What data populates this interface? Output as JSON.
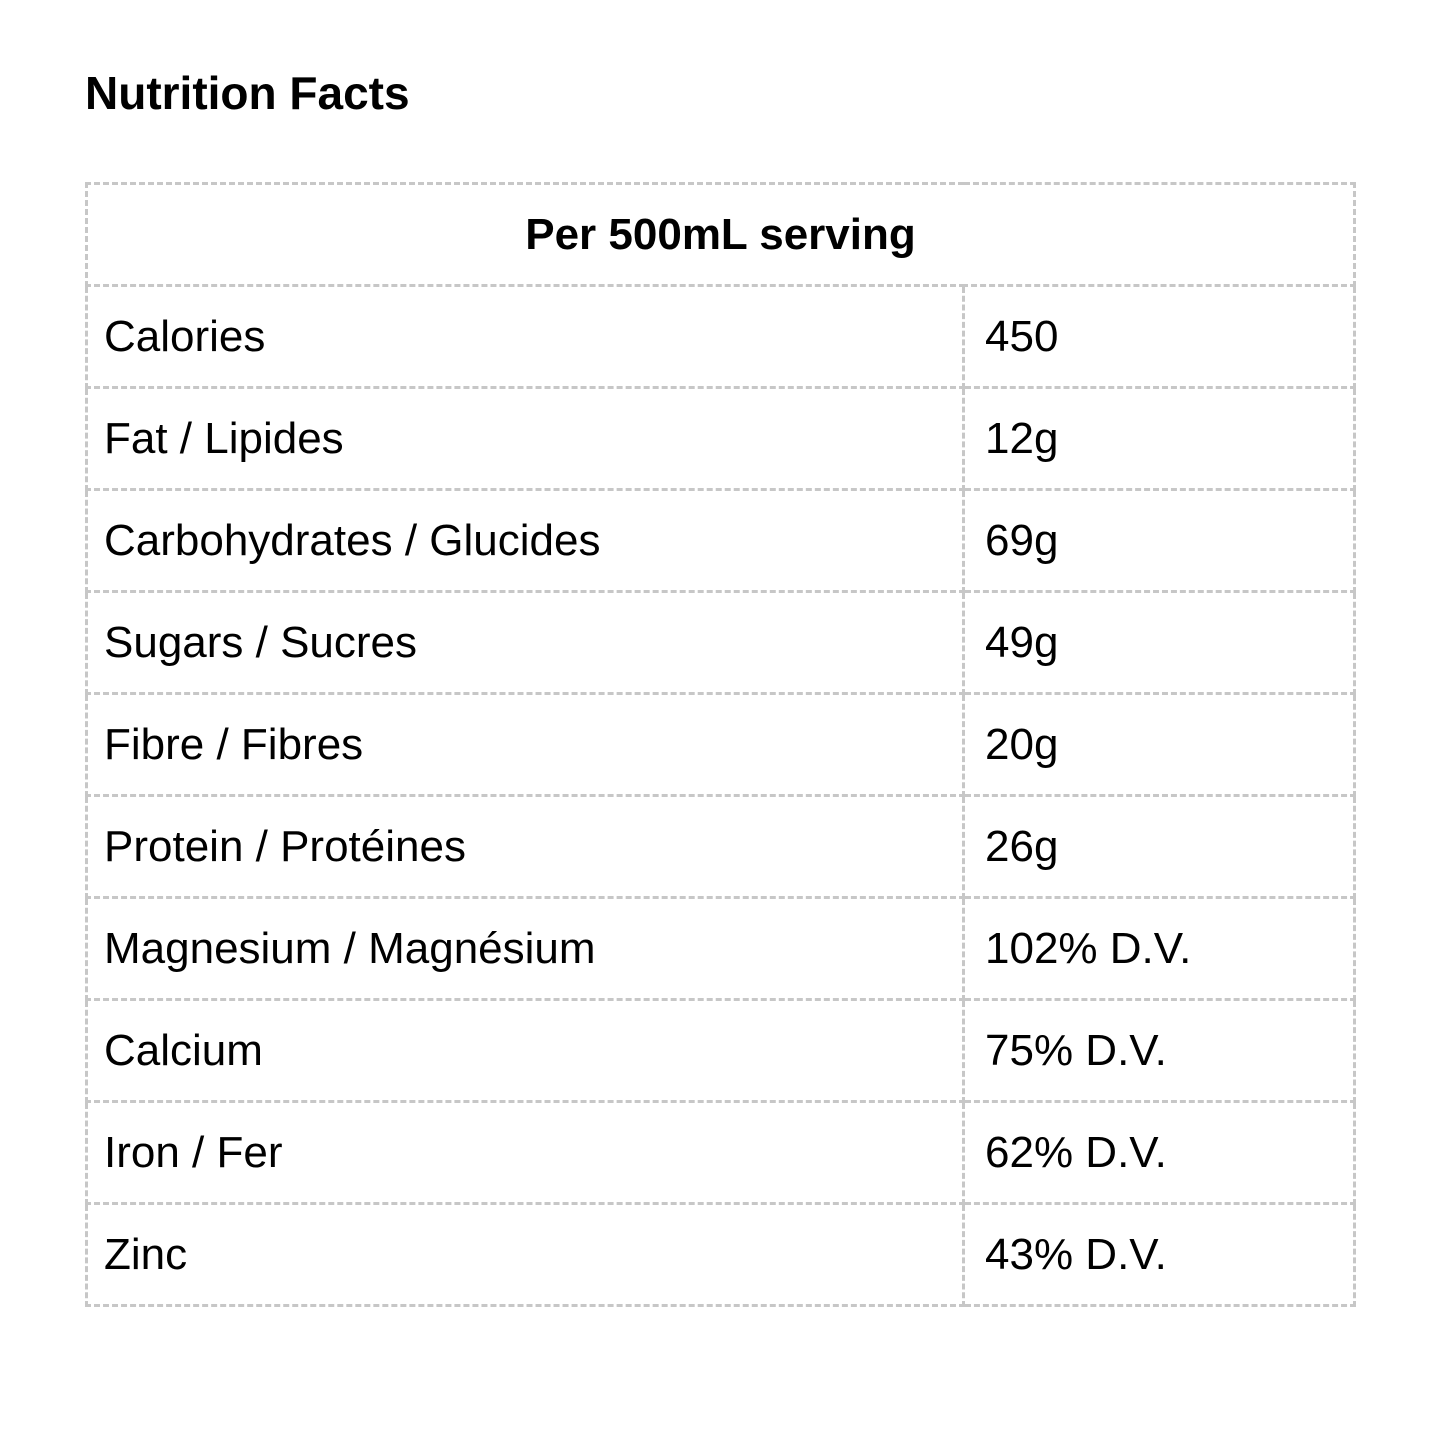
{
  "page": {
    "title": "Nutrition Facts"
  },
  "table": {
    "header": "Per 500mL serving",
    "rows": [
      {
        "label": "Calories",
        "value": "450"
      },
      {
        "label": "Fat / Lipides",
        "value": "12g"
      },
      {
        "label": "Carbohydrates / Glucides",
        "value": "69g"
      },
      {
        "label": "Sugars / Sucres",
        "value": "49g"
      },
      {
        "label": "Fibre / Fibres",
        "value": "20g"
      },
      {
        "label": "Protein / Protéines",
        "value": "26g"
      },
      {
        "label": "Magnesium / Magnésium",
        "value": "102% D.V."
      },
      {
        "label": "Calcium",
        "value": "75% D.V."
      },
      {
        "label": "Iron / Fer",
        "value": "62% D.V."
      },
      {
        "label": "Zinc",
        "value": "43% D.V."
      }
    ],
    "colors": {
      "border": "#c7c7c7",
      "text": "#000000",
      "background": "#ffffff"
    }
  }
}
